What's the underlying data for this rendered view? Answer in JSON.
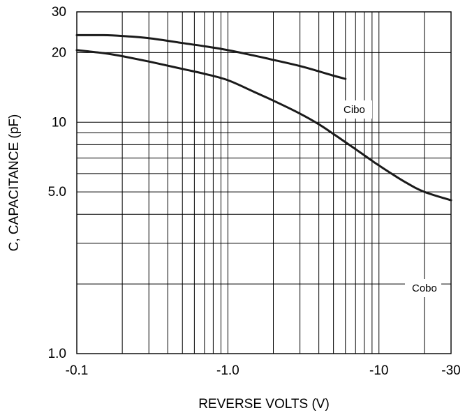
{
  "chart_data": {
    "type": "line",
    "title": "",
    "xlabel": "REVERSE VOLTS (V)",
    "ylabel": "C, CAPACITANCE (pF)",
    "x_scale": "log",
    "y_scale": "log",
    "xlim": [
      0.1,
      30
    ],
    "ylim": [
      1.0,
      30
    ],
    "grid": true,
    "x_ticks": [
      {
        "value": 0.1,
        "label": "-0.1"
      },
      {
        "value": 1.0,
        "label": "-1.0"
      },
      {
        "value": 10,
        "label": "-10"
      },
      {
        "value": 30,
        "label": "-30"
      }
    ],
    "y_ticks": [
      {
        "value": 1.0,
        "label": "1.0"
      },
      {
        "value": 5.0,
        "label": "5.0"
      },
      {
        "value": 10,
        "label": "10"
      },
      {
        "value": 20,
        "label": "20"
      },
      {
        "value": 30,
        "label": "30"
      }
    ],
    "series": [
      {
        "name": "Cibo",
        "x": [
          0.1,
          0.15,
          0.2,
          0.3,
          0.5,
          0.7,
          1.0,
          1.5,
          2.0,
          3.0,
          4.0,
          5.0,
          6.0
        ],
        "y": [
          23.8,
          23.8,
          23.6,
          23.1,
          22.0,
          21.3,
          20.5,
          19.4,
          18.6,
          17.5,
          16.6,
          15.9,
          15.4
        ]
      },
      {
        "name": "Cobo",
        "x": [
          0.1,
          0.15,
          0.2,
          0.3,
          0.5,
          0.7,
          1.0,
          1.5,
          2.0,
          3.0,
          4.0,
          5.0,
          6.0,
          8.0,
          10,
          15,
          20,
          30
        ],
        "y": [
          20.5,
          19.9,
          19.3,
          18.3,
          17.0,
          16.2,
          15.2,
          13.5,
          12.4,
          10.9,
          9.8,
          8.9,
          8.2,
          7.2,
          6.5,
          5.5,
          5.0,
          4.6
        ]
      }
    ]
  }
}
